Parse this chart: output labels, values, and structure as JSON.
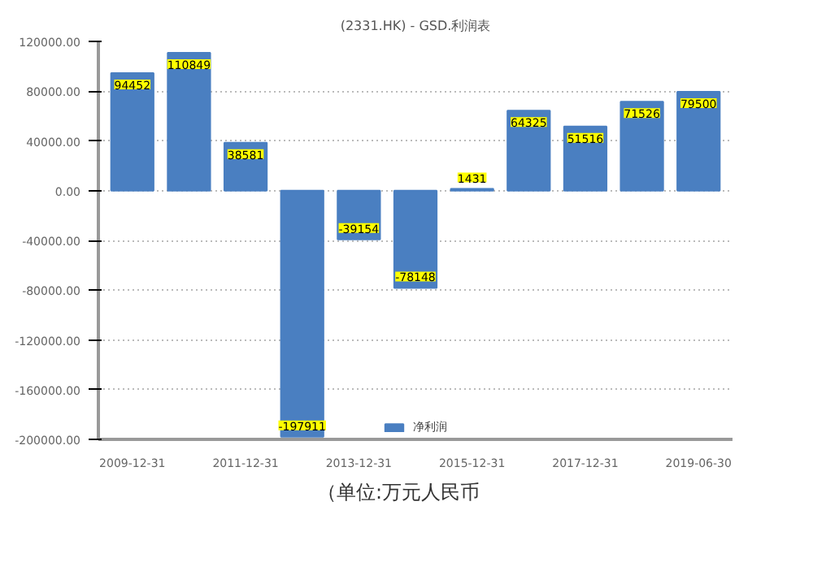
{
  "chart_data": {
    "type": "bar",
    "title": "(2331.HK) - GSD.利润表",
    "categories": [
      "2009-12-31",
      null,
      "2011-12-31",
      null,
      "2013-12-31",
      null,
      "2015-12-31",
      null,
      "2017-12-31",
      null,
      "2019-06-30"
    ],
    "series": [
      {
        "name": "净利润",
        "color": "#4a7fc1",
        "values": [
          94452,
          110849,
          38581,
          -197911,
          -39154,
          -78148,
          1431,
          64325,
          51516,
          71526,
          79500
        ]
      }
    ],
    "ylim": [
      -200000,
      120000
    ],
    "yticks": [
      {
        "value": -200000,
        "label": "-200000.00"
      },
      {
        "value": -160000,
        "label": "-160000.00"
      },
      {
        "value": -120000,
        "label": "-120000.00"
      },
      {
        "value": -80000,
        "label": "-80000.00"
      },
      {
        "value": -40000,
        "label": "-40000.00"
      },
      {
        "value": 0,
        "label": "0.00"
      },
      {
        "value": 40000,
        "label": "40000.00"
      },
      {
        "value": 80000,
        "label": "80000.00"
      },
      {
        "value": 120000,
        "label": "120000.00"
      }
    ],
    "grid": "y",
    "legend": "bottom",
    "data_labels": true,
    "annotations": [
      "（单位:万元人民币"
    ]
  }
}
